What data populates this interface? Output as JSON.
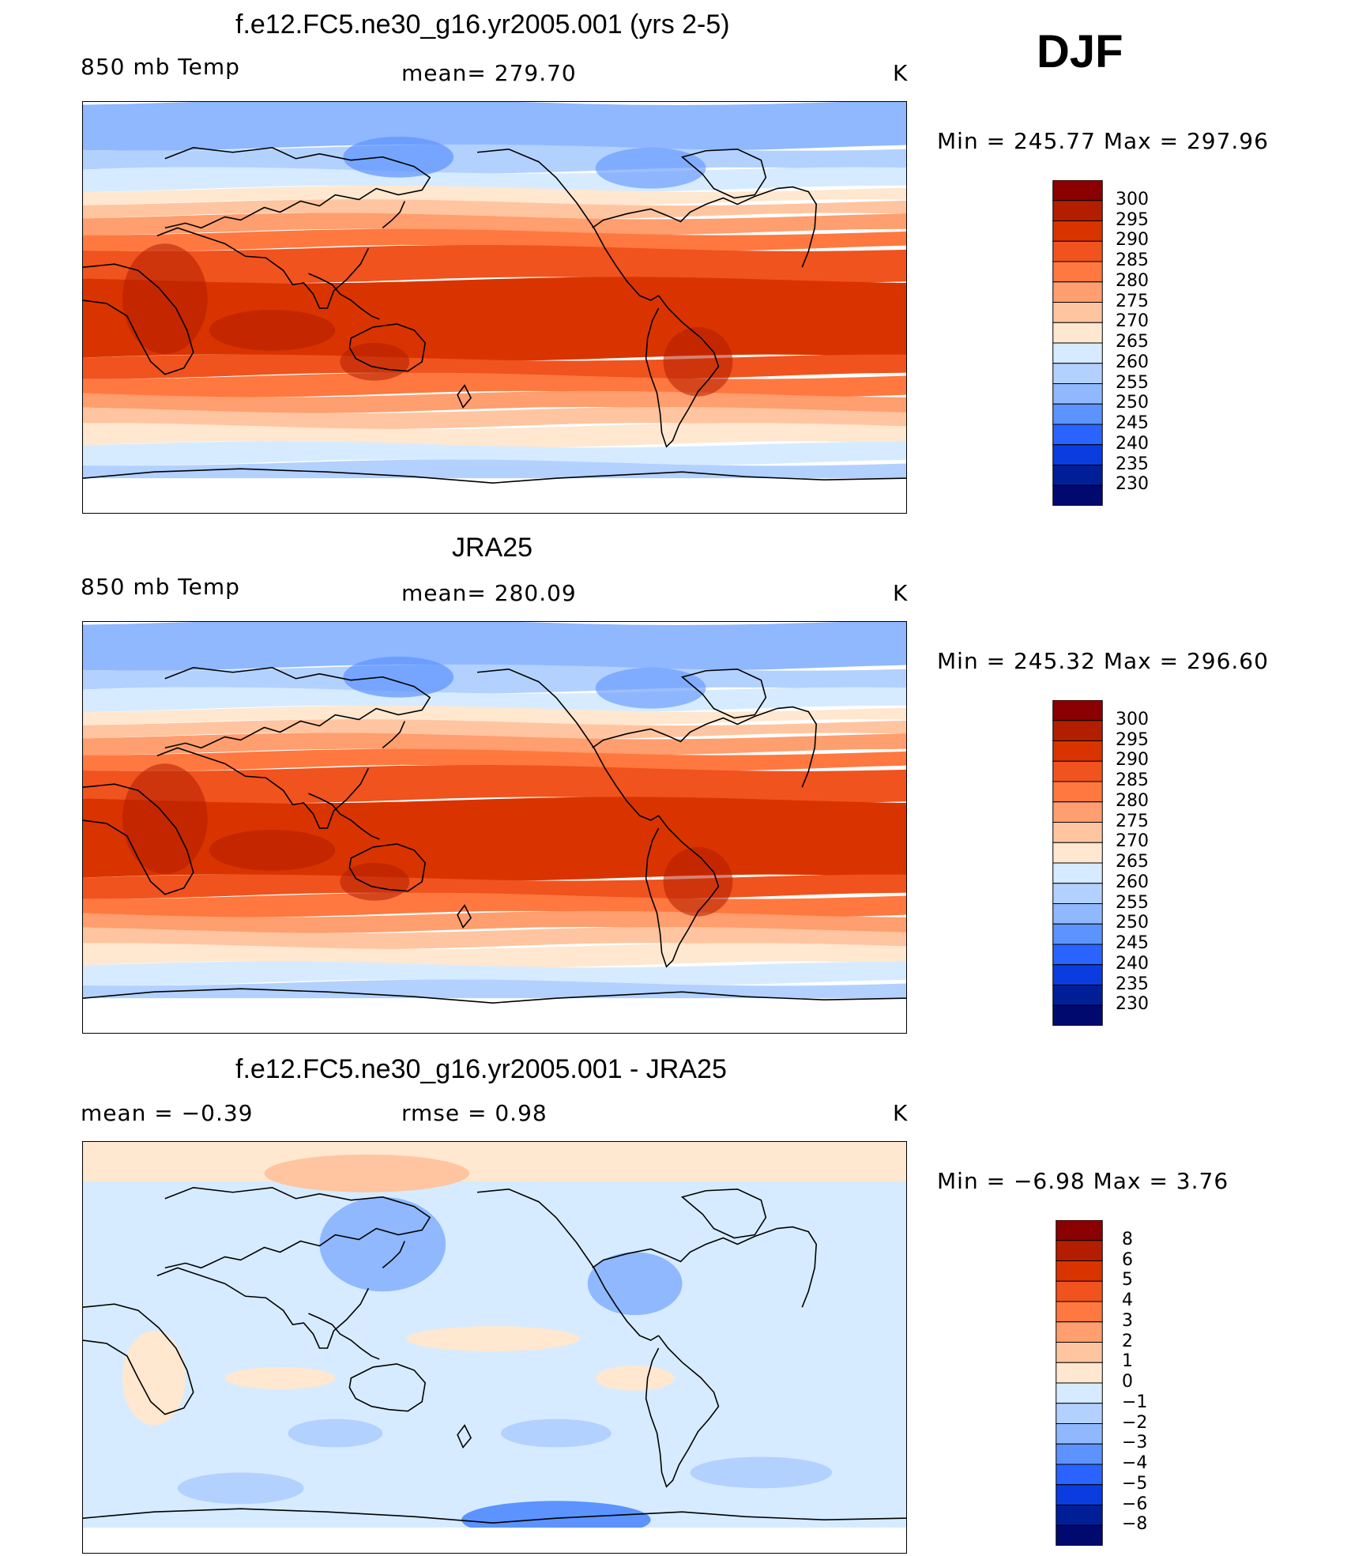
{
  "season": "DJF",
  "panels": [
    {
      "title": "f.e12.FC5.ne30_g16.yr2005.001 (yrs 2-5)",
      "left_label": "850 mb Temp",
      "center_label": "mean= 279.70",
      "units": "K",
      "minmax": "Min = 245.77 Max = 297.96",
      "type": "abs",
      "colorbar_labels": [
        "300",
        "295",
        "290",
        "285",
        "280",
        "275",
        "270",
        "265",
        "260",
        "255",
        "250",
        "245",
        "240",
        "235",
        "230"
      ],
      "colors": [
        "#8b0000",
        "#b31e00",
        "#d93400",
        "#f0531e",
        "#ff7840",
        "#ff9e6e",
        "#ffc5a0",
        "#ffe7d0",
        "#d6ebff",
        "#b3d1ff",
        "#8fb8ff",
        "#5c93ff",
        "#2a63ff",
        "#0a3ce0",
        "#001e96",
        "#000a6e"
      ]
    },
    {
      "title": "JRA25",
      "left_label": "850 mb Temp",
      "center_label": "mean= 280.09",
      "units": "K",
      "minmax": "Min = 245.32 Max = 296.60",
      "type": "abs",
      "colorbar_labels": [
        "300",
        "295",
        "290",
        "285",
        "280",
        "275",
        "270",
        "265",
        "260",
        "255",
        "250",
        "245",
        "240",
        "235",
        "230"
      ],
      "colors": [
        "#8b0000",
        "#b31e00",
        "#d93400",
        "#f0531e",
        "#ff7840",
        "#ff9e6e",
        "#ffc5a0",
        "#ffe7d0",
        "#d6ebff",
        "#b3d1ff",
        "#8fb8ff",
        "#5c93ff",
        "#2a63ff",
        "#0a3ce0",
        "#001e96",
        "#000a6e"
      ]
    },
    {
      "title": "f.e12.FC5.ne30_g16.yr2005.001 - JRA25",
      "left_label": "mean = −0.39",
      "center_label": "rmse = 0.98",
      "units": "K",
      "minmax": "Min = −6.98 Max = 3.76",
      "type": "diff",
      "colorbar_labels": [
        "8",
        "6",
        "5",
        "4",
        "3",
        "2",
        "1",
        "0",
        "−1",
        "−2",
        "−3",
        "−4",
        "−5",
        "−6",
        "−8"
      ],
      "colors": [
        "#8b0000",
        "#b31e00",
        "#d93400",
        "#f0531e",
        "#ff7840",
        "#ff9e6e",
        "#ffc5a0",
        "#ffe7d0",
        "#d6ebff",
        "#b3d1ff",
        "#8fb8ff",
        "#5c93ff",
        "#2a63ff",
        "#0a3ce0",
        "#001e96",
        "#000a6e"
      ]
    }
  ]
}
